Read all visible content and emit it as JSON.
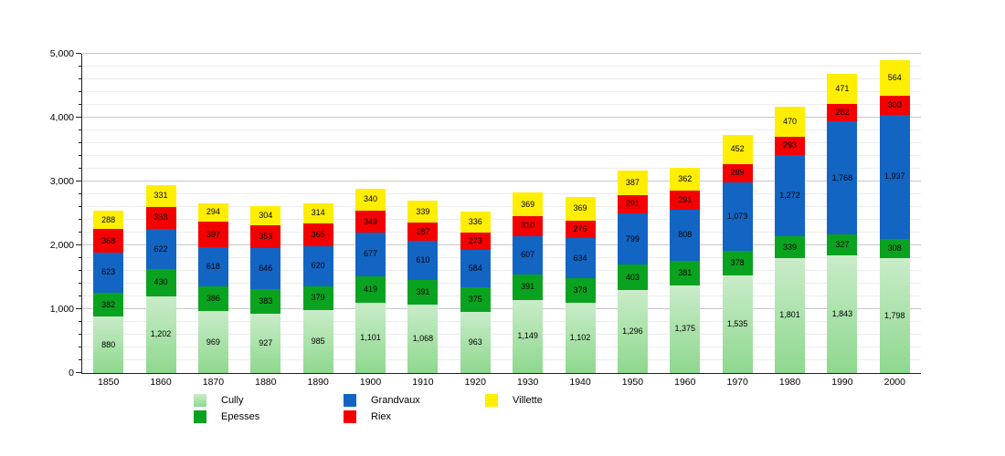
{
  "chart_data": {
    "type": "bar",
    "stacked": true,
    "title": "",
    "xlabel": "",
    "ylabel": "",
    "categories": [
      "1850",
      "1860",
      "1870",
      "1880",
      "1890",
      "1900",
      "1910",
      "1920",
      "1930",
      "1940",
      "1950",
      "1960",
      "1970",
      "1980",
      "1990",
      "2000"
    ],
    "series": [
      {
        "name": "Cully",
        "color": "#a8dda8",
        "gradient_top": "#c9ecc9",
        "gradient_bottom": "#8ed88e",
        "values": [
          880,
          1202,
          969,
          927,
          985,
          1101,
          1068,
          963,
          1149,
          1102,
          1296,
          1375,
          1535,
          1801,
          1843,
          1798
        ]
      },
      {
        "name": "Epesses",
        "color": "#0aa320",
        "values": [
          382,
          430,
          386,
          383,
          379,
          419,
          391,
          375,
          391,
          378,
          403,
          381,
          378,
          339,
          327,
          308
        ]
      },
      {
        "name": "Grandvaux",
        "color": "#1365c4",
        "values": [
          623,
          622,
          618,
          646,
          620,
          677,
          610,
          584,
          607,
          634,
          799,
          808,
          1073,
          1272,
          1768,
          1937
        ]
      },
      {
        "name": "Riex",
        "color": "#f50000",
        "values": [
          368,
          353,
          397,
          353,
          365,
          349,
          287,
          273,
          310,
          276,
          291,
          291,
          289,
          293,
          282,
          300
        ]
      },
      {
        "name": "Villette",
        "color": "#ffee00",
        "values": [
          288,
          331,
          294,
          304,
          314,
          340,
          339,
          336,
          369,
          369,
          387,
          362,
          452,
          470,
          471,
          564
        ]
      }
    ],
    "ylim": [
      0,
      5000
    ],
    "y_major_step": 1000,
    "y_minor_step": 200,
    "grid": true,
    "value_labels": true,
    "legend_position": "bottom",
    "legend_order": [
      "Cully",
      "Epesses",
      "Grandvaux",
      "Riex",
      "Villette"
    ],
    "axis_color": "#222222",
    "major_grid_color": "#c8c8c8",
    "minor_grid_color": "#ececec"
  }
}
